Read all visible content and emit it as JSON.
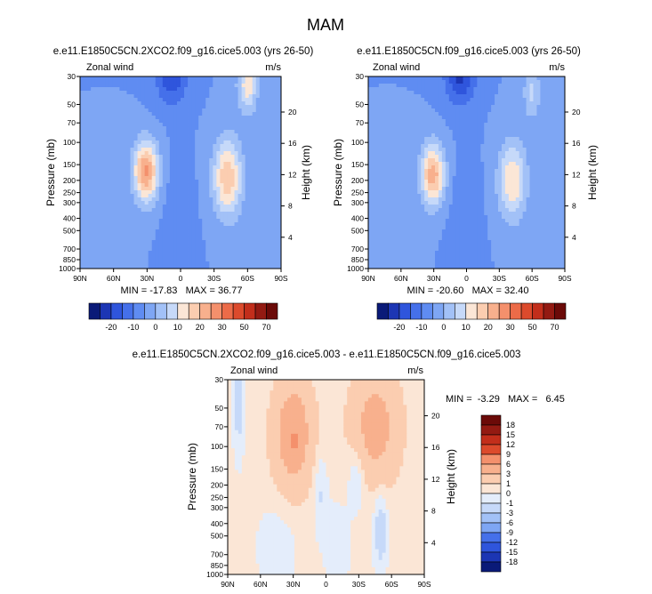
{
  "page_title": "MAM",
  "colors": {
    "scale": [
      "#0a1a78",
      "#1c36b4",
      "#2f55dc",
      "#4570ea",
      "#5f8cf2",
      "#7ea6f4",
      "#a2c1f7",
      "#c6d9f9",
      "#e4edfb",
      "#fbe6d6",
      "#fbcdb0",
      "#f8b08d",
      "#f4906c",
      "#ec6b48",
      "#dc4a2c",
      "#c22e1b",
      "#931a12",
      "#6b0a08"
    ]
  },
  "chart_data": [
    {
      "type": "heatmap",
      "title": "e.e11.E1850C5CN.2XCO2.f09_g16.cice5.003 (yrs 26-50)",
      "left_label": "Zonal wind",
      "units": "m/s",
      "ylabel": "Pressure (mb)",
      "ylabel_right": "Height (km)",
      "x_ticks": [
        "90N",
        "60N",
        "30N",
        "0",
        "30S",
        "60S",
        "90S"
      ],
      "x_values": [
        90,
        60,
        30,
        0,
        -30,
        -60,
        -90
      ],
      "y_ticks": [
        "30",
        "50",
        "70",
        "100",
        "150",
        "200",
        "250",
        "300",
        "400",
        "500",
        "700",
        "850",
        "1000"
      ],
      "y_values": [
        30,
        50,
        70,
        100,
        150,
        200,
        250,
        300,
        400,
        500,
        700,
        850,
        1000
      ],
      "height_ticks": [
        "4",
        "8",
        "12",
        "16",
        "20"
      ],
      "height_values": [
        4,
        8,
        12,
        16,
        20
      ],
      "stats": "MIN = -17.83   MAX = 36.77",
      "colorbar_labels": [
        "-20",
        "-10",
        "0",
        "10",
        "20",
        "30",
        "50",
        "70"
      ],
      "colorbar_levels": [
        -25,
        -20,
        -15,
        -10,
        -5,
        0,
        5,
        10,
        15,
        20,
        25,
        30,
        40,
        50,
        60,
        70
      ],
      "field": {
        "base": -5,
        "blobs": [
          {
            "lat": 31,
            "p": 170,
            "amp": 31,
            "wlat": 11,
            "wlp": 0.55
          },
          {
            "lat": -42,
            "p": 190,
            "amp": 24,
            "wlat": 13,
            "wlp": 0.7
          },
          {
            "lat": -60,
            "p": 35,
            "amp": 18,
            "wlat": 9,
            "wlp": 0.5
          },
          {
            "lat": 8,
            "p": 30,
            "amp": -14,
            "wlat": 14,
            "wlp": 0.5
          },
          {
            "lat": 2,
            "p": 600,
            "amp": -4,
            "wlat": 12,
            "wlp": 1.2
          },
          {
            "lat": 60,
            "p": 900,
            "amp": 3,
            "wlat": 15,
            "wlp": 0.5
          },
          {
            "lat": -52,
            "p": 900,
            "amp": 4,
            "wlat": 10,
            "wlp": 0.5
          }
        ]
      }
    },
    {
      "type": "heatmap",
      "title": "e.e11.E1850C5CN.f09_g16.cice5.003 (yrs 26-50)",
      "left_label": "Zonal wind",
      "units": "m/s",
      "ylabel": "Pressure (mb)",
      "ylabel_right": "Height (km)",
      "x_ticks": [
        "90N",
        "60N",
        "30N",
        "0",
        "30S",
        "60S",
        "90S"
      ],
      "x_values": [
        90,
        60,
        30,
        0,
        -30,
        -60,
        -90
      ],
      "y_ticks": [
        "30",
        "50",
        "70",
        "100",
        "150",
        "200",
        "250",
        "300",
        "400",
        "500",
        "700",
        "850",
        "1000"
      ],
      "y_values": [
        30,
        50,
        70,
        100,
        150,
        200,
        250,
        300,
        400,
        500,
        700,
        850,
        1000
      ],
      "height_ticks": [
        "4",
        "8",
        "12",
        "16",
        "20"
      ],
      "height_values": [
        4,
        8,
        12,
        16,
        20
      ],
      "stats": "MIN = -20.60   MAX = 32.40",
      "colorbar_labels": [
        "-20",
        "-10",
        "0",
        "10",
        "20",
        "30",
        "50",
        "70"
      ],
      "colorbar_levels": [
        -25,
        -20,
        -15,
        -10,
        -5,
        0,
        5,
        10,
        15,
        20,
        25,
        30,
        40,
        50,
        60,
        70
      ],
      "field": {
        "base": -5,
        "blobs": [
          {
            "lat": 31,
            "p": 180,
            "amp": 28,
            "wlat": 11,
            "wlp": 0.55
          },
          {
            "lat": -42,
            "p": 200,
            "amp": 20,
            "wlat": 13,
            "wlp": 0.7
          },
          {
            "lat": -60,
            "p": 40,
            "amp": 11,
            "wlat": 8,
            "wlp": 0.5
          },
          {
            "lat": 6,
            "p": 30,
            "amp": -16,
            "wlat": 14,
            "wlp": 0.5
          },
          {
            "lat": 2,
            "p": 600,
            "amp": -5,
            "wlat": 12,
            "wlp": 1.2
          },
          {
            "lat": 60,
            "p": 900,
            "amp": 3,
            "wlat": 15,
            "wlp": 0.5
          },
          {
            "lat": -52,
            "p": 900,
            "amp": 3,
            "wlat": 10,
            "wlp": 0.5
          }
        ]
      }
    },
    {
      "type": "heatmap",
      "title": "e.e11.E1850C5CN.2XCO2.f09_g16.cice5.003 - e.e11.E1850C5CN.f09_g16.cice5.003",
      "left_label": "Zonal wind",
      "units": "m/s",
      "ylabel": "Pressure (mb)",
      "ylabel_right": "Height (km)",
      "x_ticks": [
        "90N",
        "60N",
        "30N",
        "0",
        "30S",
        "60S",
        "90S"
      ],
      "x_values": [
        90,
        60,
        30,
        0,
        -30,
        -60,
        -90
      ],
      "y_ticks": [
        "30",
        "50",
        "70",
        "100",
        "150",
        "200",
        "250",
        "300",
        "400",
        "500",
        "700",
        "850",
        "1000"
      ],
      "y_values": [
        30,
        50,
        70,
        100,
        150,
        200,
        250,
        300,
        400,
        500,
        700,
        850,
        1000
      ],
      "height_ticks": [
        "4",
        "8",
        "12",
        "16",
        "20"
      ],
      "height_values": [
        4,
        8,
        12,
        16,
        20
      ],
      "stats": "MIN =  -3.29   MAX =   6.45",
      "colorbar_labels": [
        "18",
        "15",
        "12",
        "9",
        "6",
        "3",
        "1",
        "0",
        "-1",
        "-3",
        "-6",
        "-9",
        "-12",
        "-15",
        "-18"
      ],
      "colorbar_levels": [
        -18,
        -15,
        -12,
        -9,
        -6,
        -3,
        -1,
        0,
        1,
        3,
        6,
        9,
        12,
        15,
        18
      ],
      "field": {
        "base": 0.3,
        "blobs": [
          {
            "lat": 30,
            "p": 80,
            "amp": 4.5,
            "wlat": 18,
            "wlp": 1.0
          },
          {
            "lat": -45,
            "p": 70,
            "amp": 3.8,
            "wlat": 22,
            "wlp": 1.0
          },
          {
            "lat": 29,
            "p": 95,
            "amp": 2.2,
            "wlat": 4,
            "wlp": 0.25
          },
          {
            "lat": 80,
            "p": 40,
            "amp": -2.2,
            "wlat": 5,
            "wlp": 1.0
          },
          {
            "lat": 5,
            "p": 220,
            "amp": -1.5,
            "wlat": 6,
            "wlp": 0.7
          },
          {
            "lat": -28,
            "p": 170,
            "amp": -1.6,
            "wlat": 8,
            "wlp": 0.6
          },
          {
            "lat": -50,
            "p": 450,
            "amp": -2.4,
            "wlat": 6,
            "wlp": 0.7
          },
          {
            "lat": 45,
            "p": 600,
            "amp": -0.9,
            "wlat": 18,
            "wlp": 0.8
          },
          {
            "lat": -10,
            "p": 600,
            "amp": -0.9,
            "wlat": 12,
            "wlp": 0.8
          }
        ]
      }
    }
  ]
}
